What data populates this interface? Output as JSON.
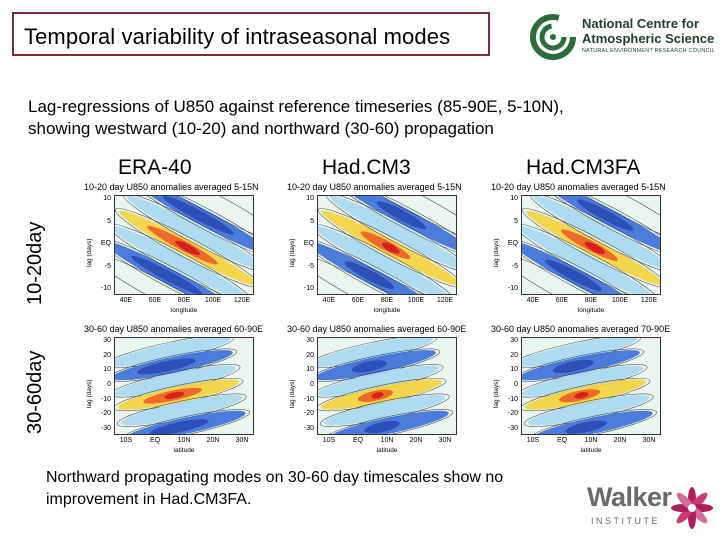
{
  "slide": {
    "title": "Temporal variability of intraseasonal modes",
    "subtitle_line1": "Lag-regressions of U850 against reference timeseries (85-90E, 5-10N),",
    "subtitle_line2": "showing westward (10-20) and northward (30-60) propagation",
    "note_line1": "Northward propagating modes on 30-60 day timescales show no",
    "note_line2": "improvement in Had.CM3FA."
  },
  "ncas_logo": {
    "line1": "National Centre for",
    "line2": "Atmospheric Science",
    "line3": "NATURAL ENVIRONMENT RESEARCH COUNCIL",
    "color": "#1f3f2a"
  },
  "walker_logo": {
    "name": "Walker",
    "sub": "INSTITUTE"
  },
  "columns": [
    "ERA-40",
    "Had.CM3",
    "Had.CM3FA"
  ],
  "rows": [
    "10-20day",
    "30-60day"
  ],
  "panels": {
    "top": {
      "ylabel": "lag (days)",
      "xlabel": "longitude",
      "yticks": [
        "10",
        "5",
        "EQ",
        "-5",
        "-10"
      ],
      "xticks": [
        "40E",
        "60E",
        "80E",
        "100E",
        "120E"
      ],
      "titles": [
        "10-20 day U850 anomalies averaged 5-15N",
        "10-20 day U850 anomalies averaged 5-15N",
        "10-20 day U850 anomalies averaged 5-15N"
      ]
    },
    "bottom": {
      "ylabel": "lag (days)",
      "xlabel": "latitude",
      "yticks": [
        "30",
        "20",
        "10",
        "0",
        "-10",
        "-20",
        "-30"
      ],
      "xticks": [
        "10S",
        "EQ",
        "10N",
        "20N",
        "30N"
      ],
      "titles": [
        "30-60 day U850 anomalies averaged 60-90E",
        "30-60 day U850 anomalies averaged 60-90E",
        "30-60 day U850 anomalies averaged 70-90E"
      ]
    }
  },
  "colors": {
    "title_border": "#7a2a3a",
    "walker_text": "#6a6a6a",
    "walker_flower": "#b01f5a"
  }
}
